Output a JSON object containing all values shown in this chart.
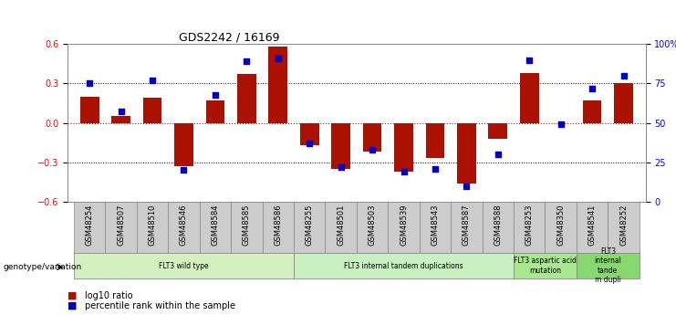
{
  "title": "GDS2242 / 16169",
  "samples": [
    "GSM48254",
    "GSM48507",
    "GSM48510",
    "GSM48546",
    "GSM48584",
    "GSM48585",
    "GSM48586",
    "GSM48255",
    "GSM48501",
    "GSM48503",
    "GSM48539",
    "GSM48543",
    "GSM48587",
    "GSM48588",
    "GSM48253",
    "GSM48350",
    "GSM48541",
    "GSM48252"
  ],
  "log10_ratio": [
    0.2,
    0.05,
    0.19,
    -0.33,
    0.17,
    0.37,
    0.58,
    -0.17,
    -0.35,
    -0.22,
    -0.37,
    -0.27,
    -0.46,
    -0.12,
    0.38,
    0.0,
    0.17,
    0.3
  ],
  "percentile_rank": [
    75,
    57,
    77,
    20,
    68,
    89,
    91,
    37,
    22,
    33,
    19,
    21,
    10,
    30,
    90,
    49,
    72,
    80
  ],
  "groups": [
    {
      "label": "FLT3 wild type",
      "start": 0,
      "end": 7,
      "color": "#d4f0c0"
    },
    {
      "label": "FLT3 internal tandem duplications",
      "start": 7,
      "end": 14,
      "color": "#c8f0c0"
    },
    {
      "label": "FLT3 aspartic acid\nmutation",
      "start": 14,
      "end": 16,
      "color": "#a8e890"
    },
    {
      "label": "FLT3\ninternal\ntande\nm dupli",
      "start": 16,
      "end": 18,
      "color": "#88d870"
    }
  ],
  "bar_color_red": "#aa1100",
  "dot_color_blue": "#0000cc",
  "ylim_left": [
    -0.6,
    0.6
  ],
  "ylim_right": [
    0,
    100
  ],
  "yticks_left": [
    -0.6,
    -0.3,
    0.0,
    0.3,
    0.6
  ],
  "yticks_right": [
    0,
    25,
    50,
    75,
    100
  ],
  "ytick_labels_right": [
    "0",
    "25",
    "50",
    "75",
    "100%"
  ],
  "background_color": "#ffffff"
}
